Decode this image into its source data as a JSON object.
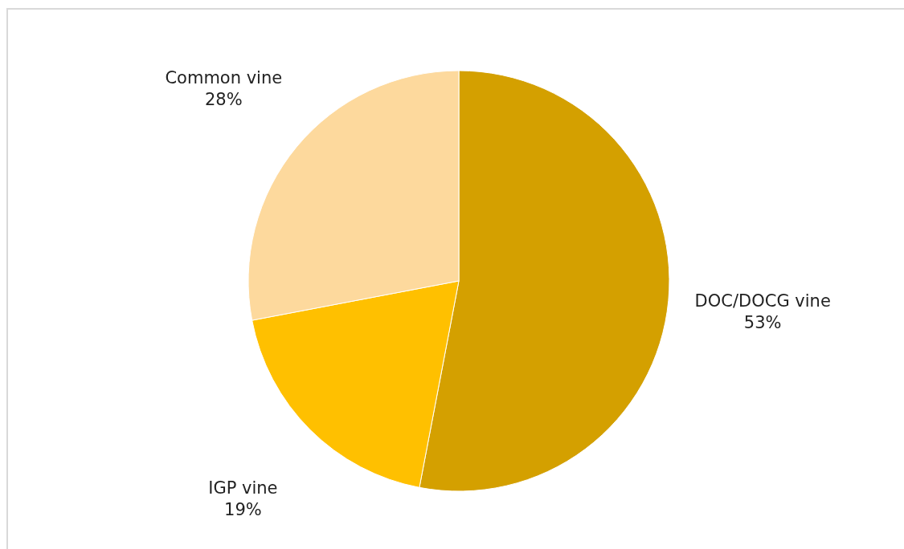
{
  "chart_data": {
    "type": "pie",
    "categories": [
      "DOC/DOCG vine",
      "IGP vine",
      "Common vine"
    ],
    "values": [
      53,
      19,
      28
    ],
    "colors": [
      "#d4a000",
      "#ffc000",
      "#fdd99d"
    ],
    "value_labels": [
      "53%",
      "19%",
      "28%"
    ]
  }
}
